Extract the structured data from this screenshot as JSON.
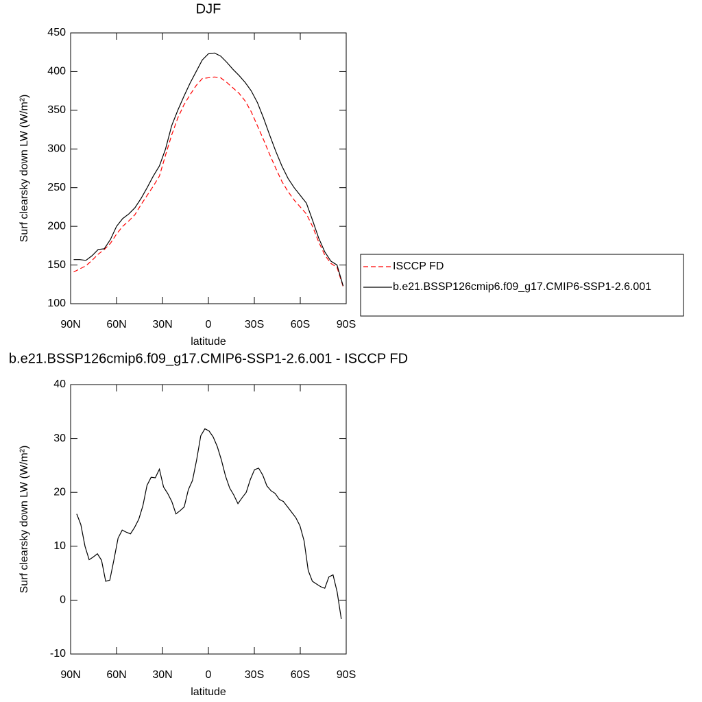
{
  "chart_data": [
    {
      "type": "line",
      "title": "DJF",
      "xlabel": "latitude",
      "ylabel": "Surf clearsky down LW (W/m²)",
      "x": [
        88,
        84,
        80,
        76,
        72,
        68,
        64,
        60,
        56,
        52,
        48,
        44,
        40,
        36,
        32,
        28,
        24,
        20,
        16,
        12,
        8,
        4,
        0,
        -4,
        -8,
        -12,
        -16,
        -20,
        -24,
        -28,
        -32,
        -36,
        -40,
        -44,
        -48,
        -52,
        -56,
        -60,
        -64,
        -68,
        -72,
        -76,
        -80,
        -84,
        -88
      ],
      "series": [
        {
          "name": "ISCCP FD",
          "color": "#ff0000",
          "line_style": "dashed",
          "values": [
            141,
            145,
            149,
            156,
            164,
            170,
            178,
            190,
            200,
            207,
            215,
            228,
            240,
            252,
            265,
            292,
            318,
            340,
            357,
            370,
            382,
            391,
            392,
            393,
            392,
            386,
            379,
            372,
            362,
            348,
            330,
            312,
            293,
            275,
            258,
            245,
            234,
            225,
            216,
            200,
            180,
            163,
            152,
            147,
            122
          ]
        },
        {
          "name": "b.e21.BSSP126cmip6.f09_g17.CMIP6-SSP1-2.6.001",
          "color": "#000000",
          "line_style": "solid",
          "values": [
            157,
            157,
            156,
            162,
            170,
            171,
            183,
            200,
            210,
            216,
            224,
            236,
            250,
            265,
            278,
            300,
            330,
            350,
            368,
            385,
            400,
            415,
            423,
            424,
            420,
            412,
            403,
            395,
            386,
            375,
            360,
            340,
            318,
            297,
            278,
            262,
            250,
            240,
            230,
            208,
            185,
            167,
            155,
            150,
            123
          ]
        }
      ],
      "xlim": [
        90,
        -90
      ],
      "xticks": [
        {
          "value": 90,
          "label": "90N"
        },
        {
          "value": 60,
          "label": "60N"
        },
        {
          "value": 30,
          "label": "30N"
        },
        0,
        {
          "value": -30,
          "label": "30S"
        },
        {
          "value": -60,
          "label": "60S"
        },
        {
          "value": -90,
          "label": "90S"
        }
      ],
      "ylim": [
        100,
        450
      ],
      "yticks": [
        100,
        150,
        200,
        250,
        300,
        350,
        400,
        450
      ],
      "grid": false,
      "legend": "right"
    },
    {
      "type": "line",
      "title": "b.e21.BSSP126cmip6.f09_g17.CMIP6-SSP1-2.6.001 - ISCCP FD",
      "xlabel": "latitude",
      "ylabel": "Surf clearsky down LW (W/m²)",
      "x": [
        86,
        83.3,
        80.6,
        77.9,
        75.2,
        72.5,
        69.8,
        67.1,
        64.4,
        61.7,
        59,
        56.3,
        53.6,
        50.9,
        48.2,
        45.5,
        42.8,
        40.1,
        37.4,
        34.7,
        32,
        29.3,
        26.6,
        23.9,
        21.2,
        18.5,
        15.8,
        13.1,
        10.4,
        7.7,
        5,
        2.3,
        -0.4,
        -3.1,
        -5.8,
        -8.5,
        -11.2,
        -13.9,
        -16.6,
        -19.3,
        -22,
        -24.7,
        -27.4,
        -30.1,
        -32.8,
        -35.5,
        -38.2,
        -40.9,
        -43.6,
        -46.3,
        -49,
        -51.7,
        -54.4,
        -57.1,
        -59.8,
        -62.5,
        -65.2,
        -67.9,
        -70.6,
        -73.3,
        -76,
        -78.7,
        -81.4,
        -84.1,
        -86.8
      ],
      "series": [
        {
          "color": "#000000",
          "line_style": "solid",
          "values": [
            16,
            14,
            10,
            7.5,
            8,
            8.6,
            7.4,
            3.5,
            3.7,
            7.5,
            11.5,
            13,
            12.6,
            12.3,
            13.5,
            15,
            17.5,
            21.3,
            22.8,
            22.7,
            24.3,
            21,
            19.8,
            18.3,
            16,
            16.6,
            17.3,
            20.5,
            22.2,
            26,
            30.5,
            31.8,
            31.4,
            30.3,
            28.5,
            26,
            23,
            20.8,
            19.5,
            17.9,
            19,
            20,
            22.4,
            24.2,
            24.5,
            23.2,
            21.2,
            20.3,
            19.8,
            18.7,
            18.3,
            17.3,
            16.3,
            15.3,
            13.8,
            11,
            5.5,
            3.5,
            3,
            2.5,
            2.2,
            4.3,
            4.7,
            1.5,
            -3.5
          ]
        }
      ],
      "xlim": [
        90,
        -90
      ],
      "xticks": [
        {
          "value": 90,
          "label": "90N"
        },
        {
          "value": 60,
          "label": "60N"
        },
        {
          "value": 30,
          "label": "30N"
        },
        0,
        {
          "value": -30,
          "label": "30S"
        },
        {
          "value": -60,
          "label": "60S"
        },
        {
          "value": -90,
          "label": "90S"
        }
      ],
      "ylim": [
        -10,
        40
      ],
      "yticks": [
        -10,
        0,
        10,
        20,
        30,
        40
      ],
      "grid": false
    }
  ]
}
